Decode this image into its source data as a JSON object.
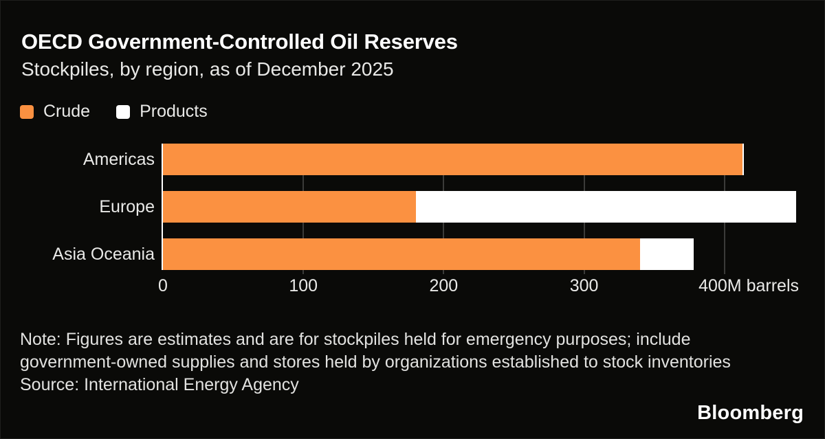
{
  "header": {
    "title": "OECD Government-Controlled Oil Reserves",
    "subtitle": "Stockpiles, by region, as of December 2025"
  },
  "legend": {
    "items": [
      {
        "label": "Crude",
        "color": "#fb9141"
      },
      {
        "label": "Products",
        "color": "#ffffff"
      }
    ]
  },
  "chart_data": {
    "type": "bar",
    "orientation": "horizontal",
    "stacked": true,
    "title": "OECD Government-Controlled Oil Reserves",
    "subtitle": "Stockpiles, by region, as of December 2025",
    "categories": [
      "Americas",
      "Europe",
      "Asia Oceania"
    ],
    "series": [
      {
        "name": "Crude",
        "color": "#fb9141",
        "values": [
          413,
          180,
          340
        ]
      },
      {
        "name": "Products",
        "color": "#ffffff",
        "values": [
          1,
          271,
          38
        ]
      }
    ],
    "totals": [
      414,
      451,
      378
    ],
    "unit": "M barrels",
    "xlim": [
      0,
      454
    ],
    "x_ticks": [
      {
        "value": 0,
        "label": "0",
        "align": "center"
      },
      {
        "value": 100,
        "label": "100",
        "align": "center"
      },
      {
        "value": 200,
        "label": "200",
        "align": "center"
      },
      {
        "value": 300,
        "label": "300",
        "align": "center"
      },
      {
        "value": 400,
        "label": "400M barrels",
        "align": "right"
      }
    ],
    "grid": "vertical gridlines at ticks, drawn behind bars",
    "legend_position": "top-left"
  },
  "footer": {
    "note_line1": "Note: Figures are estimates and are for stockpiles held for emergency purposes; include",
    "note_line2": "government-owned supplies and stores held by organizations established to stock inventories",
    "source": "Source: International Energy Agency",
    "brand": "Bloomberg"
  },
  "theme": {
    "bg": "#0a0a08",
    "title": "#ffffff",
    "text": "#e9e9e7",
    "note": "#e2e2e0",
    "grid": "#3b3b39",
    "baseline": "#ffffff",
    "crude": "#fb9141",
    "products": "#ffffff"
  }
}
